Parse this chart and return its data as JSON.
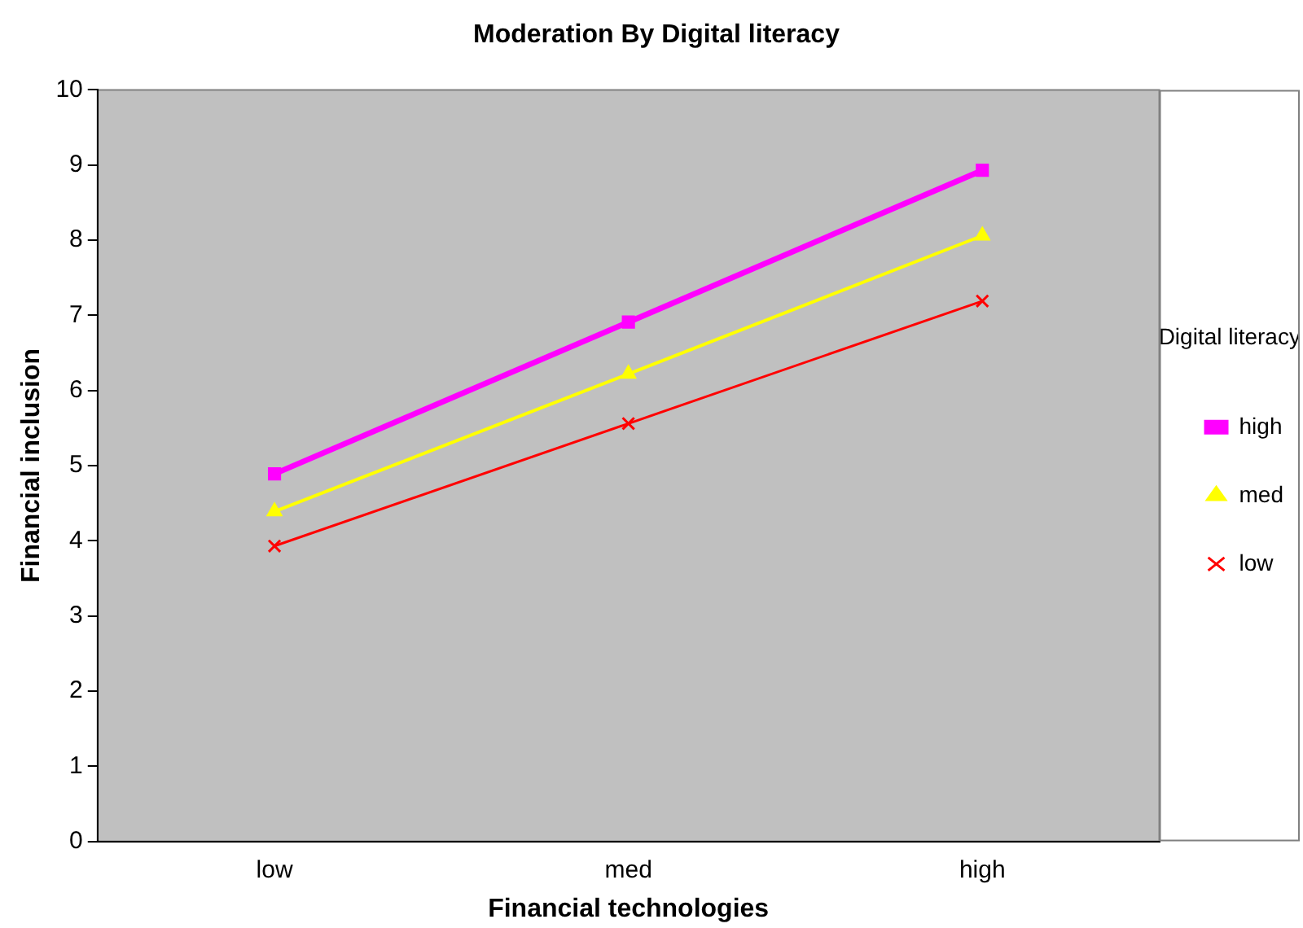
{
  "chart_data": {
    "type": "line",
    "title": "Moderation By Digital literacy",
    "xlabel": "Financial technologies",
    "ylabel": "Financial inclusion",
    "legend_title": "Digital literacy",
    "legend": "right",
    "categories": [
      "low",
      "med",
      "high"
    ],
    "series": [
      {
        "name": "high",
        "color": "#ff00ff",
        "marker": "square",
        "values": [
          4.89,
          6.91,
          8.93
        ]
      },
      {
        "name": "med",
        "color": "#ffff00",
        "marker": "triangle",
        "values": [
          4.39,
          6.22,
          8.06
        ]
      },
      {
        "name": "low",
        "color": "#ff0000",
        "marker": "cross",
        "values": [
          3.93,
          5.56,
          7.19
        ]
      }
    ],
    "ylim": [
      0,
      10
    ],
    "yticks": [
      0,
      1,
      2,
      3,
      4,
      5,
      6,
      7,
      8,
      9,
      10
    ],
    "grid": false,
    "line_style": "solid"
  }
}
